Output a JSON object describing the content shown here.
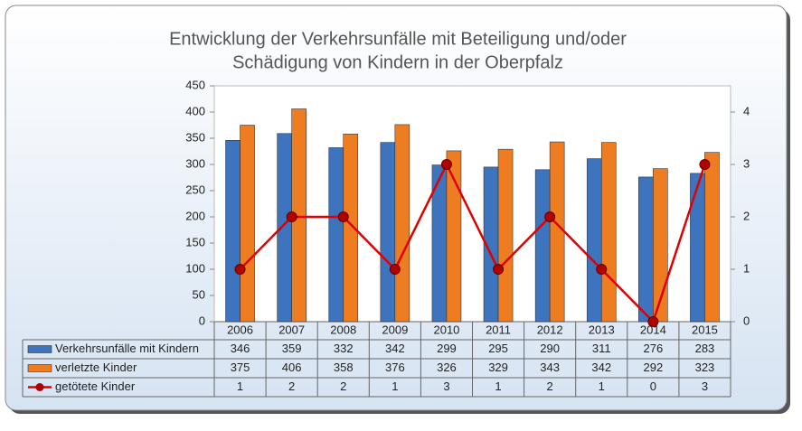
{
  "chart_data": {
    "type": "bar",
    "title": [
      "Entwicklung der Verkehrsunfälle mit Beteiligung und/oder",
      "Schädigung von Kindern in der Oberpfalz"
    ],
    "categories": [
      "2006",
      "2007",
      "2008",
      "2009",
      "2010",
      "2011",
      "2012",
      "2013",
      "2014",
      "2015"
    ],
    "series": [
      {
        "name": "Verkehrsunfälle mit Kindern",
        "color": "#3d74bd",
        "type": "bar",
        "values": [
          346,
          359,
          332,
          342,
          299,
          295,
          290,
          311,
          276,
          283
        ]
      },
      {
        "name": "verletzte Kinder",
        "color": "#ee7d22",
        "type": "bar",
        "values": [
          375,
          406,
          358,
          376,
          326,
          329,
          343,
          342,
          292,
          323
        ]
      },
      {
        "name": "getötete Kinder",
        "color": "#e00000",
        "type": "line",
        "axis": "y2",
        "values": [
          1,
          2,
          2,
          1,
          3,
          1,
          2,
          1,
          0,
          3
        ]
      }
    ],
    "ylim": [
      0,
      450
    ],
    "yticks": [
      0,
      50,
      100,
      150,
      200,
      250,
      300,
      350,
      400,
      450
    ],
    "y2lim": [
      0,
      4.5
    ],
    "y2ticks": [
      0,
      1,
      2,
      3,
      4
    ],
    "grid": false
  }
}
